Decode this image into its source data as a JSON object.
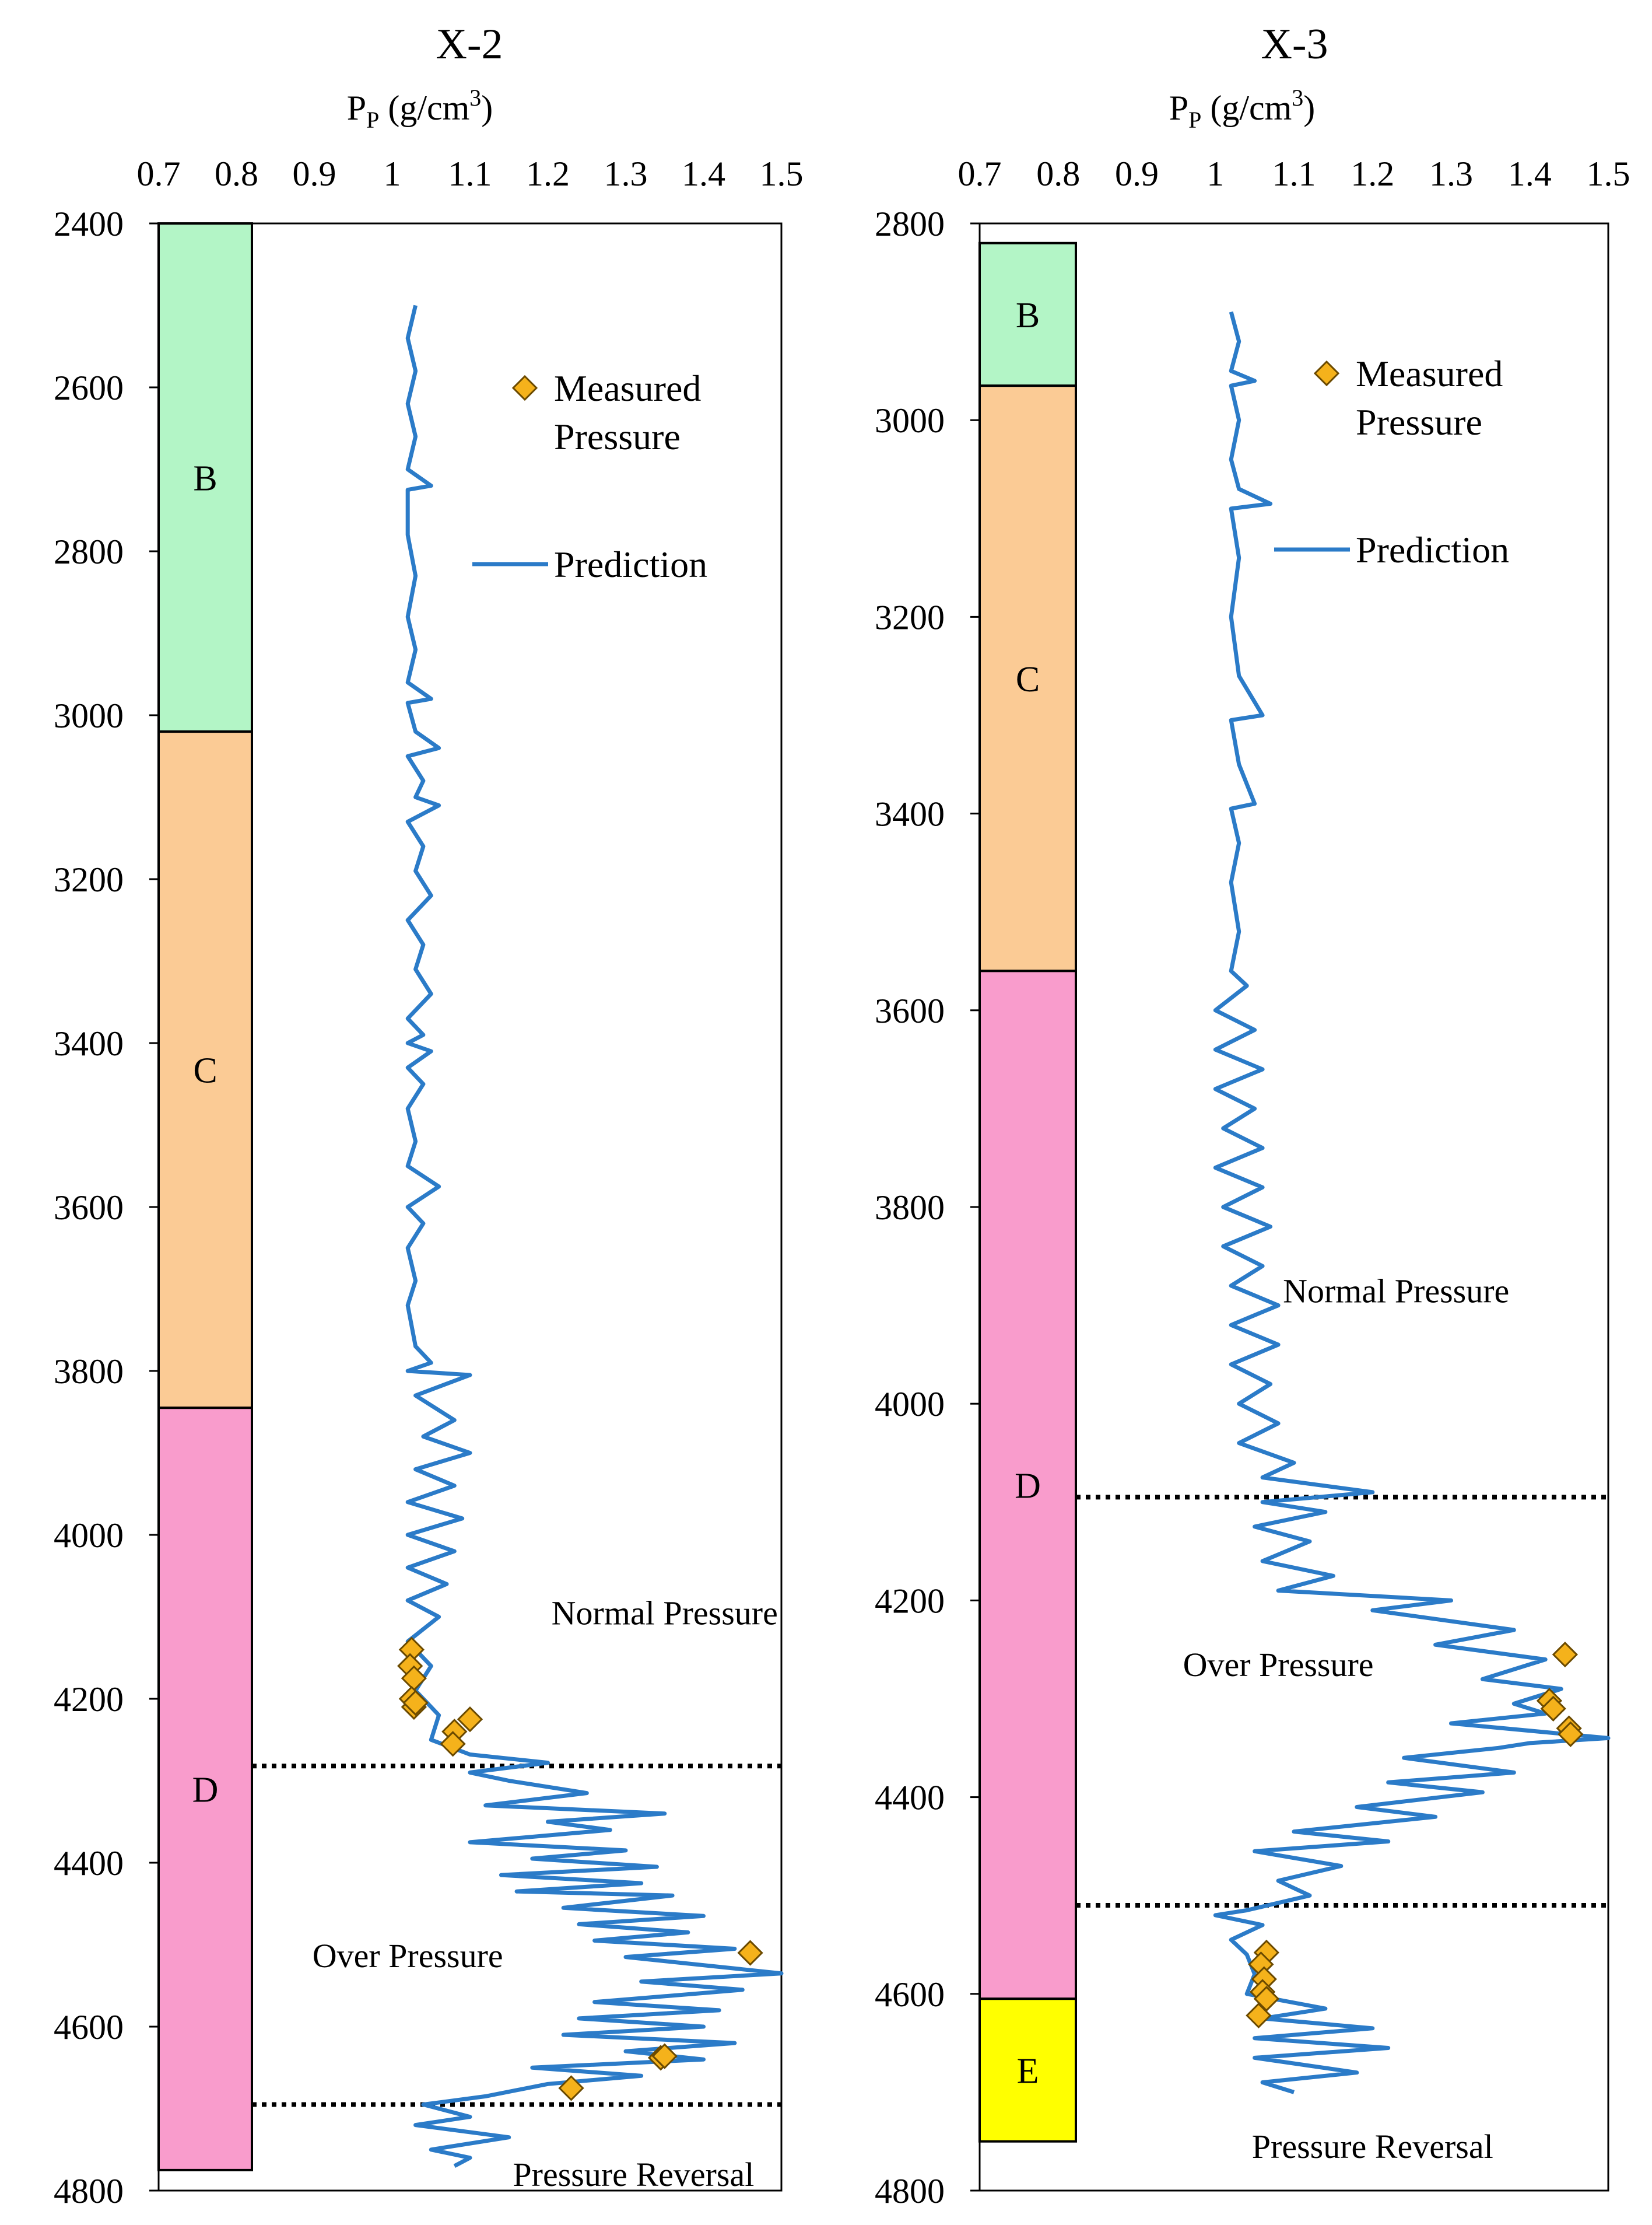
{
  "chart_data": [
    {
      "type": "line",
      "title": "X-2",
      "xlabel": "P",
      "xlabel_sub": "P",
      "xlabel_unit": " (g/cm",
      "xlabel_sup": "3",
      "xlabel_end": ")",
      "xlim": [
        0.7,
        1.5
      ],
      "xticks": [
        "0.7",
        "0.8",
        "0.9",
        "1",
        "1.1",
        "1.2",
        "1.3",
        "1.4",
        "1.5"
      ],
      "ylim": [
        2400,
        4800
      ],
      "yticks": [
        "2400",
        "2600",
        "2800",
        "3000",
        "3200",
        "3400",
        "3600",
        "3800",
        "4000",
        "4200",
        "4400",
        "4600",
        "4800"
      ],
      "zones": [
        {
          "label": "B",
          "top": 2400,
          "bottom": 3020,
          "color": "#b3f5c6"
        },
        {
          "label": "C",
          "top": 3020,
          "bottom": 3845,
          "color": "#fbcb95"
        },
        {
          "label": "D",
          "top": 3845,
          "bottom": 4775,
          "color": "#f99ccc"
        }
      ],
      "boundaries": [
        4282,
        4695
      ],
      "annotations": [
        {
          "text": "Normal Pressure",
          "x": 1.35,
          "y": 4095
        },
        {
          "text": "Over Pressure",
          "x": 1.02,
          "y": 4513
        },
        {
          "text": "Pressure Reversal",
          "x": 1.31,
          "y": 4780
        }
      ],
      "series": [
        {
          "name": "Prediction",
          "color": "#2b7bc8",
          "points": [
            [
              1.03,
              2500
            ],
            [
              1.02,
              2540
            ],
            [
              1.03,
              2580
            ],
            [
              1.02,
              2620
            ],
            [
              1.03,
              2660
            ],
            [
              1.02,
              2700
            ],
            [
              1.05,
              2720
            ],
            [
              1.02,
              2725
            ],
            [
              1.02,
              2780
            ],
            [
              1.03,
              2830
            ],
            [
              1.02,
              2880
            ],
            [
              1.03,
              2920
            ],
            [
              1.02,
              2960
            ],
            [
              1.05,
              2980
            ],
            [
              1.02,
              2985
            ],
            [
              1.03,
              3020
            ],
            [
              1.06,
              3040
            ],
            [
              1.02,
              3050
            ],
            [
              1.04,
              3080
            ],
            [
              1.03,
              3100
            ],
            [
              1.06,
              3110
            ],
            [
              1.02,
              3130
            ],
            [
              1.04,
              3160
            ],
            [
              1.03,
              3190
            ],
            [
              1.05,
              3220
            ],
            [
              1.02,
              3250
            ],
            [
              1.04,
              3280
            ],
            [
              1.03,
              3310
            ],
            [
              1.05,
              3340
            ],
            [
              1.02,
              3370
            ],
            [
              1.04,
              3390
            ],
            [
              1.02,
              3400
            ],
            [
              1.05,
              3410
            ],
            [
              1.02,
              3430
            ],
            [
              1.04,
              3450
            ],
            [
              1.02,
              3480
            ],
            [
              1.03,
              3520
            ],
            [
              1.02,
              3550
            ],
            [
              1.06,
              3575
            ],
            [
              1.02,
              3600
            ],
            [
              1.04,
              3620
            ],
            [
              1.02,
              3650
            ],
            [
              1.03,
              3690
            ],
            [
              1.02,
              3720
            ],
            [
              1.03,
              3770
            ],
            [
              1.05,
              3790
            ],
            [
              1.02,
              3800
            ],
            [
              1.1,
              3805
            ],
            [
              1.03,
              3830
            ],
            [
              1.08,
              3860
            ],
            [
              1.04,
              3880
            ],
            [
              1.1,
              3900
            ],
            [
              1.03,
              3920
            ],
            [
              1.08,
              3940
            ],
            [
              1.02,
              3960
            ],
            [
              1.09,
              3980
            ],
            [
              1.02,
              4000
            ],
            [
              1.08,
              4020
            ],
            [
              1.02,
              4040
            ],
            [
              1.07,
              4060
            ],
            [
              1.02,
              4080
            ],
            [
              1.06,
              4100
            ],
            [
              1.02,
              4130
            ],
            [
              1.05,
              4160
            ],
            [
              1.03,
              4190
            ],
            [
              1.06,
              4220
            ],
            [
              1.05,
              4250
            ],
            [
              1.1,
              4268
            ],
            [
              1.2,
              4278
            ],
            [
              1.1,
              4290
            ],
            [
              1.15,
              4300
            ],
            [
              1.25,
              4315
            ],
            [
              1.12,
              4330
            ],
            [
              1.35,
              4340
            ],
            [
              1.2,
              4350
            ],
            [
              1.28,
              4360
            ],
            [
              1.1,
              4375
            ],
            [
              1.3,
              4385
            ],
            [
              1.18,
              4395
            ],
            [
              1.34,
              4405
            ],
            [
              1.14,
              4415
            ],
            [
              1.32,
              4425
            ],
            [
              1.16,
              4435
            ],
            [
              1.36,
              4440
            ],
            [
              1.22,
              4455
            ],
            [
              1.4,
              4465
            ],
            [
              1.24,
              4475
            ],
            [
              1.38,
              4485
            ],
            [
              1.26,
              4495
            ],
            [
              1.44,
              4505
            ],
            [
              1.3,
              4515
            ],
            [
              1.5,
              4535
            ],
            [
              1.32,
              4545
            ],
            [
              1.45,
              4555
            ],
            [
              1.26,
              4570
            ],
            [
              1.42,
              4580
            ],
            [
              1.24,
              4590
            ],
            [
              1.4,
              4600
            ],
            [
              1.22,
              4610
            ],
            [
              1.44,
              4620
            ],
            [
              1.3,
              4630
            ],
            [
              1.4,
              4640
            ],
            [
              1.18,
              4650
            ],
            [
              1.32,
              4660
            ],
            [
              1.2,
              4670
            ],
            [
              1.12,
              4685
            ],
            [
              1.04,
              4695
            ],
            [
              1.1,
              4710
            ],
            [
              1.03,
              4720
            ],
            [
              1.15,
              4735
            ],
            [
              1.05,
              4750
            ],
            [
              1.1,
              4760
            ],
            [
              1.08,
              4770
            ]
          ]
        },
        {
          "name": "Measured Pressure",
          "color": "#f5b21b",
          "points": [
            [
              1.025,
              4140
            ],
            [
              1.023,
              4160
            ],
            [
              1.028,
              4175
            ],
            [
              1.025,
              4200
            ],
            [
              1.028,
              4210
            ],
            [
              1.03,
              4205
            ],
            [
              1.1,
              4225
            ],
            [
              1.08,
              4240
            ],
            [
              1.078,
              4255
            ],
            [
              1.46,
              4510
            ],
            [
              1.345,
              4638
            ],
            [
              1.35,
              4636
            ],
            [
              1.23,
              4675
            ]
          ]
        }
      ],
      "legend": {
        "marker_label_1": "Measured",
        "marker_label_2": "Pressure",
        "line_label": "Prediction",
        "position": "top-right"
      }
    },
    {
      "type": "line",
      "title": "X-3",
      "xlabel": "P",
      "xlabel_sub": "P",
      "xlabel_unit": " (g/cm",
      "xlabel_sup": "3",
      "xlabel_end": ")",
      "xlim": [
        0.7,
        1.5
      ],
      "xticks": [
        "0.7",
        "0.8",
        "0.9",
        "1",
        "1.1",
        "1.2",
        "1.3",
        "1.4",
        "1.5"
      ],
      "ylim": [
        2800,
        4800
      ],
      "yticks": [
        "2800",
        "3000",
        "3200",
        "3400",
        "3600",
        "3800",
        "4000",
        "4200",
        "4400",
        "4600",
        "4800"
      ],
      "zones": [
        {
          "label": "B",
          "top": 2820,
          "bottom": 2965,
          "color": "#b3f5c6"
        },
        {
          "label": "C",
          "top": 2965,
          "bottom": 3560,
          "color": "#fbcb95"
        },
        {
          "label": "D",
          "top": 3560,
          "bottom": 4605,
          "color": "#f99ccc"
        },
        {
          "label": "E",
          "top": 4605,
          "bottom": 4750,
          "color": "#ffff00"
        }
      ],
      "boundaries": [
        4095,
        4510
      ],
      "annotations": [
        {
          "text": "Normal Pressure",
          "x": 1.23,
          "y": 3885
        },
        {
          "text": "Over Pressure",
          "x": 1.08,
          "y": 4265
        },
        {
          "text": "Pressure Reversal",
          "x": 1.2,
          "y": 4755
        }
      ],
      "series": [
        {
          "name": "Prediction",
          "color": "#2b7bc8",
          "points": [
            [
              1.02,
              2890
            ],
            [
              1.03,
              2920
            ],
            [
              1.02,
              2950
            ],
            [
              1.05,
              2960
            ],
            [
              1.02,
              2965
            ],
            [
              1.03,
              3000
            ],
            [
              1.02,
              3040
            ],
            [
              1.03,
              3070
            ],
            [
              1.07,
              3085
            ],
            [
              1.02,
              3090
            ],
            [
              1.03,
              3140
            ],
            [
              1.02,
              3200
            ],
            [
              1.03,
              3260
            ],
            [
              1.06,
              3300
            ],
            [
              1.02,
              3305
            ],
            [
              1.03,
              3350
            ],
            [
              1.05,
              3390
            ],
            [
              1.02,
              3395
            ],
            [
              1.03,
              3430
            ],
            [
              1.02,
              3470
            ],
            [
              1.03,
              3520
            ],
            [
              1.02,
              3560
            ],
            [
              1.04,
              3575
            ],
            [
              1.0,
              3600
            ],
            [
              1.05,
              3620
            ],
            [
              1.0,
              3640
            ],
            [
              1.06,
              3660
            ],
            [
              1.0,
              3680
            ],
            [
              1.05,
              3700
            ],
            [
              1.01,
              3720
            ],
            [
              1.06,
              3740
            ],
            [
              1.0,
              3760
            ],
            [
              1.06,
              3780
            ],
            [
              1.01,
              3800
            ],
            [
              1.07,
              3820
            ],
            [
              1.01,
              3840
            ],
            [
              1.06,
              3860
            ],
            [
              1.02,
              3880
            ],
            [
              1.08,
              3900
            ],
            [
              1.02,
              3920
            ],
            [
              1.08,
              3940
            ],
            [
              1.02,
              3960
            ],
            [
              1.07,
              3980
            ],
            [
              1.03,
              4000
            ],
            [
              1.08,
              4020
            ],
            [
              1.03,
              4040
            ],
            [
              1.1,
              4060
            ],
            [
              1.06,
              4075
            ],
            [
              1.2,
              4090
            ],
            [
              1.06,
              4100
            ],
            [
              1.14,
              4110
            ],
            [
              1.05,
              4125
            ],
            [
              1.12,
              4140
            ],
            [
              1.06,
              4160
            ],
            [
              1.15,
              4175
            ],
            [
              1.08,
              4190
            ],
            [
              1.3,
              4200
            ],
            [
              1.2,
              4210
            ],
            [
              1.38,
              4230
            ],
            [
              1.28,
              4245
            ],
            [
              1.42,
              4260
            ],
            [
              1.34,
              4280
            ],
            [
              1.44,
              4290
            ],
            [
              1.38,
              4305
            ],
            [
              1.42,
              4315
            ],
            [
              1.3,
              4325
            ],
            [
              1.5,
              4340
            ],
            [
              1.4,
              4345
            ],
            [
              1.36,
              4350
            ],
            [
              1.24,
              4360
            ],
            [
              1.38,
              4375
            ],
            [
              1.22,
              4385
            ],
            [
              1.34,
              4395
            ],
            [
              1.18,
              4410
            ],
            [
              1.28,
              4420
            ],
            [
              1.1,
              4435
            ],
            [
              1.22,
              4445
            ],
            [
              1.05,
              4455
            ],
            [
              1.16,
              4470
            ],
            [
              1.08,
              4485
            ],
            [
              1.12,
              4500
            ],
            [
              1.04,
              4515
            ],
            [
              1.0,
              4520
            ],
            [
              1.06,
              4530
            ],
            [
              1.02,
              4545
            ],
            [
              1.04,
              4560
            ],
            [
              1.05,
              4580
            ],
            [
              1.04,
              4600
            ],
            [
              1.14,
              4615
            ],
            [
              1.06,
              4625
            ],
            [
              1.2,
              4635
            ],
            [
              1.05,
              4645
            ],
            [
              1.22,
              4655
            ],
            [
              1.05,
              4665
            ],
            [
              1.18,
              4680
            ],
            [
              1.06,
              4690
            ],
            [
              1.1,
              4700
            ]
          ]
        },
        {
          "name": "Measured Pressure",
          "color": "#f5b21b",
          "points": [
            [
              1.445,
              4255
            ],
            [
              1.425,
              4302
            ],
            [
              1.43,
              4310
            ],
            [
              1.45,
              4330
            ],
            [
              1.452,
              4336
            ],
            [
              1.065,
              4558
            ],
            [
              1.058,
              4570
            ],
            [
              1.062,
              4585
            ],
            [
              1.06,
              4598
            ],
            [
              1.065,
              4605
            ],
            [
              1.055,
              4622
            ]
          ]
        }
      ],
      "legend": {
        "marker_label_1": "Measured",
        "marker_label_2": "Pressure",
        "line_label": "Prediction",
        "position": "top-right"
      }
    }
  ]
}
